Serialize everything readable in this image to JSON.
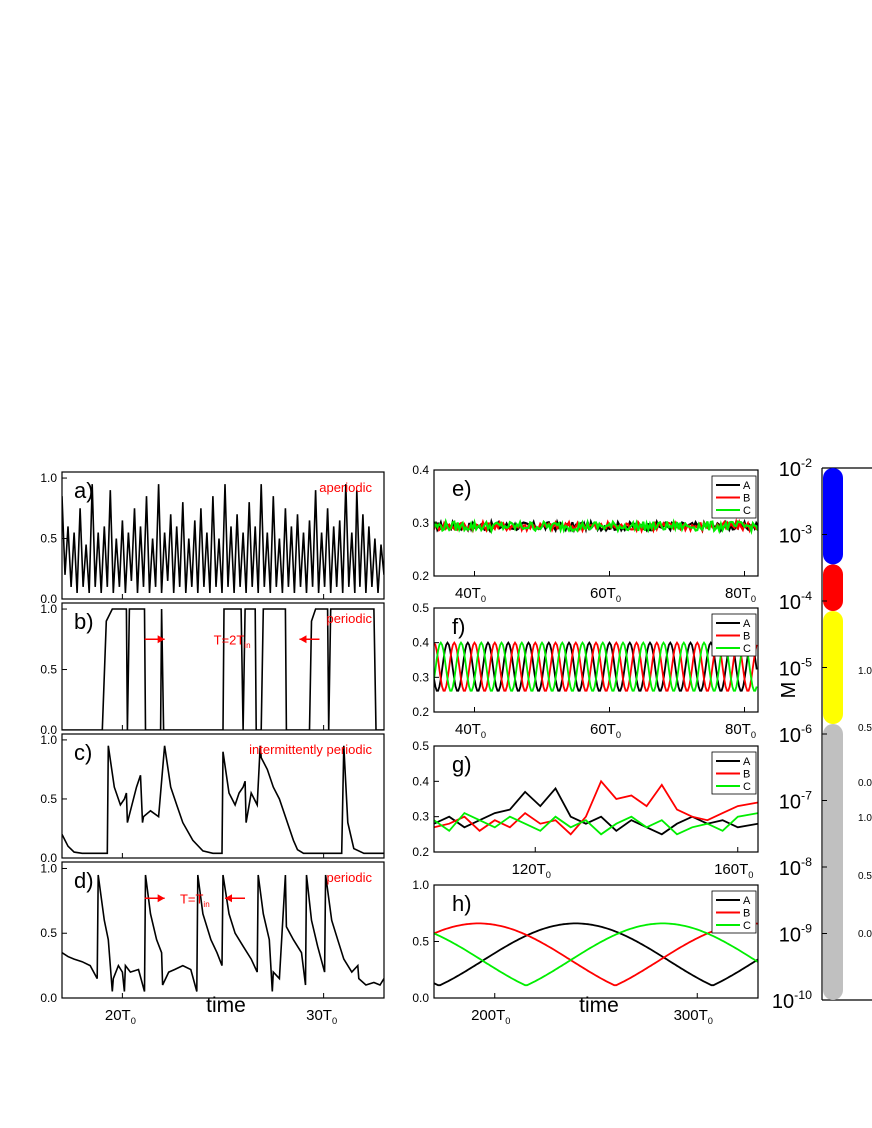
{
  "colors": {
    "black": "#000000",
    "red": "#ff0000",
    "green": "#00ee00",
    "blue": "#0000ff",
    "yellow": "#ffff00",
    "gray": "#c0c0c0"
  },
  "shared": {
    "left_xticks": [
      {
        "base": "20T",
        "sub": "0",
        "x": 20
      },
      {
        "base": "30T",
        "sub": "0",
        "x": 30
      }
    ],
    "left_xlabel": "time",
    "middle_xlabel": "time"
  },
  "chart_data": [
    {
      "id": "a",
      "type": "line",
      "label": "a)",
      "annotation": "aperiodic",
      "xlim": [
        17,
        33
      ],
      "ylim": [
        0,
        1.05
      ],
      "yticks": [
        "0.0",
        "0.5",
        "1.0"
      ],
      "series": [
        {
          "color": "black",
          "x": [
            17.0,
            17.15,
            17.3,
            17.45,
            17.6,
            17.75,
            17.9,
            18.05,
            18.2,
            18.35,
            18.5,
            18.65,
            18.8,
            18.95,
            19.1,
            19.25,
            19.4,
            19.55,
            19.7,
            19.85,
            20.0,
            20.15,
            20.3,
            20.45,
            20.6,
            20.75,
            20.9,
            21.05,
            21.2,
            21.35,
            21.5,
            21.65,
            21.8,
            21.95,
            22.1,
            22.25,
            22.4,
            22.55,
            22.7,
            22.85,
            23.0,
            23.15,
            23.3,
            23.45,
            23.6,
            23.75,
            23.9,
            24.05,
            24.2,
            24.35,
            24.5,
            24.65,
            24.8,
            24.95,
            25.1,
            25.25,
            25.4,
            25.55,
            25.7,
            25.85,
            26.0,
            26.15,
            26.3,
            26.45,
            26.6,
            26.75,
            26.9,
            27.05,
            27.2,
            27.35,
            27.5,
            27.65,
            27.8,
            27.95,
            28.1,
            28.25,
            28.4,
            28.55,
            28.7,
            28.85,
            29.0,
            29.15,
            29.3,
            29.45,
            29.6,
            29.75,
            29.9,
            30.05,
            30.2,
            30.35,
            30.5,
            30.65,
            30.8,
            30.95,
            31.1,
            31.25,
            31.4,
            31.55,
            31.65,
            31.8,
            31.95,
            32.1,
            32.25,
            32.4,
            32.55,
            32.7,
            32.85,
            33.0
          ],
          "y": [
            0.85,
            0.2,
            0.6,
            0.1,
            0.55,
            0.05,
            0.75,
            0.1,
            0.45,
            0.05,
            0.95,
            0.1,
            0.55,
            0.05,
            0.6,
            0.1,
            0.9,
            0.05,
            0.5,
            0.1,
            0.65,
            0.05,
            0.55,
            0.15,
            0.75,
            0.05,
            0.6,
            0.1,
            0.85,
            0.05,
            0.5,
            0.1,
            0.95,
            0.05,
            0.55,
            0.15,
            0.7,
            0.05,
            0.6,
            0.1,
            0.8,
            0.05,
            0.5,
            0.1,
            0.65,
            0.05,
            0.75,
            0.1,
            0.55,
            0.05,
            0.85,
            0.1,
            0.5,
            0.05,
            0.95,
            0.1,
            0.6,
            0.05,
            0.7,
            0.1,
            0.55,
            0.05,
            0.8,
            0.1,
            0.6,
            0.05,
            0.95,
            0.1,
            0.55,
            0.05,
            0.85,
            0.1,
            0.5,
            0.05,
            0.75,
            0.1,
            0.6,
            0.05,
            0.7,
            0.1,
            0.55,
            0.05,
            0.65,
            0.1,
            0.9,
            0.05,
            0.55,
            0.1,
            0.75,
            0.05,
            0.6,
            0.1,
            0.65,
            0.05,
            0.95,
            0.1,
            0.55,
            0.05,
            0.9,
            0.1,
            0.7,
            0.05,
            0.6,
            0.1,
            0.5,
            0.05,
            0.45,
            0.2
          ]
        }
      ]
    },
    {
      "id": "b",
      "type": "line",
      "label": "b)",
      "annotation": "periodic",
      "xlim": [
        17,
        33
      ],
      "ylim": [
        0,
        1.05
      ],
      "yticks": [
        "0.0",
        "0.5",
        "1.0"
      ],
      "period_marker": {
        "text": "T=2T",
        "sub": "in",
        "x1": 22.2,
        "x2": 28.7,
        "y": 0.75
      },
      "series": [
        {
          "color": "black",
          "x": [
            17.0,
            19.0,
            19.2,
            19.5,
            20.2,
            20.25,
            20.35,
            21.1,
            21.15,
            21.2,
            21.9,
            21.95,
            22.05,
            22.1,
            25.0,
            25.05,
            25.2,
            25.9,
            26.0,
            26.1,
            26.6,
            26.65,
            26.9,
            27.0,
            27.1,
            28.1,
            28.15,
            28.25,
            29.3,
            29.4,
            29.6,
            30.2,
            30.25,
            30.35,
            30.9,
            30.95,
            31.0,
            32.5,
            32.6,
            33.0
          ],
          "y": [
            0,
            0,
            0.9,
            1,
            1,
            0,
            1,
            1,
            0,
            0,
            0,
            1,
            0,
            0,
            0,
            1,
            1,
            1,
            0,
            1,
            1,
            0,
            0,
            1,
            1,
            1,
            0,
            0,
            0,
            0.9,
            1,
            1,
            0,
            1,
            1,
            1,
            1,
            1,
            0,
            0
          ]
        }
      ]
    },
    {
      "id": "c",
      "type": "line",
      "label": "c)",
      "annotation": "intermittently periodic",
      "xlim": [
        17,
        33
      ],
      "ylim": [
        0,
        1.05
      ],
      "yticks": [
        "0.0",
        "0.5",
        "1.0"
      ],
      "series": [
        {
          "color": "black",
          "x": [
            17.0,
            17.3,
            17.6,
            18.0,
            18.5,
            19.0,
            19.25,
            19.3,
            19.6,
            19.9,
            20.1,
            20.2,
            20.25,
            20.7,
            20.9,
            21.0,
            21.05,
            21.4,
            21.8,
            22.1,
            22.4,
            22.7,
            23.0,
            23.5,
            24.0,
            24.5,
            24.95,
            25.0,
            25.3,
            25.6,
            25.8,
            26.0,
            26.1,
            26.15,
            26.4,
            26.7,
            26.85,
            26.9,
            27.2,
            27.5,
            27.8,
            28.0,
            28.3,
            28.5,
            28.7,
            29.0,
            29.5,
            30.0,
            30.5,
            30.9,
            31.0,
            31.2,
            31.5,
            32.0,
            32.5,
            33.0
          ],
          "y": [
            0.2,
            0.1,
            0.05,
            0.04,
            0.04,
            0.04,
            0.04,
            0.95,
            0.6,
            0.45,
            0.5,
            0.55,
            0.3,
            0.6,
            0.7,
            0.3,
            0.35,
            0.4,
            0.35,
            0.95,
            0.6,
            0.45,
            0.3,
            0.15,
            0.06,
            0.04,
            0.04,
            0.9,
            0.55,
            0.45,
            0.55,
            0.6,
            0.65,
            0.3,
            0.55,
            0.45,
            0.95,
            0.85,
            0.75,
            0.6,
            0.5,
            0.4,
            0.25,
            0.15,
            0.07,
            0.04,
            0.04,
            0.04,
            0.04,
            0.04,
            0.95,
            0.3,
            0.08,
            0.04,
            0.04,
            0.04
          ]
        }
      ]
    },
    {
      "id": "d",
      "type": "line",
      "label": "d)",
      "annotation": "periodic",
      "xlim": [
        17,
        33
      ],
      "ylim": [
        0,
        1.05
      ],
      "yticks": [
        "0.0",
        "0.5",
        "1.0"
      ],
      "period_marker": {
        "text": "T=T",
        "sub": "in",
        "x1": 22.2,
        "x2": 25.0,
        "y": 0.77
      },
      "series": [
        {
          "color": "black",
          "x": [
            17.0,
            17.3,
            17.6,
            18.0,
            18.4,
            18.75,
            18.8,
            19.1,
            19.3,
            19.5,
            19.55,
            19.8,
            20.0,
            20.1,
            20.15,
            20.4,
            20.8,
            21.1,
            21.15,
            21.4,
            21.7,
            21.95,
            22.0,
            22.3,
            22.6,
            23.0,
            23.4,
            23.7,
            23.75,
            24.0,
            24.4,
            24.7,
            24.95,
            25.0,
            25.3,
            25.6,
            26.0,
            26.4,
            26.7,
            26.75,
            27.0,
            27.3,
            27.45,
            27.5,
            27.8,
            28.1,
            28.15,
            28.5,
            28.9,
            29.1,
            29.15,
            29.4,
            29.7,
            30.05,
            30.1,
            30.4,
            30.7,
            31.0,
            31.4,
            31.7,
            31.75,
            32.1,
            32.5,
            32.8,
            33.0
          ],
          "y": [
            0.35,
            0.32,
            0.3,
            0.28,
            0.25,
            0.15,
            0.95,
            0.6,
            0.45,
            0.05,
            0.15,
            0.25,
            0.2,
            0.05,
            0.25,
            0.2,
            0.22,
            0.05,
            0.95,
            0.65,
            0.45,
            0.35,
            0.1,
            0.2,
            0.22,
            0.25,
            0.22,
            0.05,
            0.95,
            0.65,
            0.45,
            0.35,
            0.25,
            0.95,
            0.65,
            0.5,
            0.4,
            0.3,
            0.2,
            0.95,
            0.65,
            0.45,
            0.05,
            0.2,
            0.15,
            0.95,
            0.55,
            0.45,
            0.35,
            0.1,
            0.95,
            0.6,
            0.4,
            0.2,
            0.95,
            0.6,
            0.45,
            0.3,
            0.2,
            0.25,
            0.15,
            0.1,
            0.12,
            0.1,
            0.15
          ]
        }
      ]
    },
    {
      "id": "e",
      "type": "line",
      "label": "e)",
      "xlim": [
        34,
        82
      ],
      "ylim": [
        0.2,
        0.4
      ],
      "yticks": [
        "0.2",
        "0.3",
        "0.4"
      ],
      "xticks": [
        {
          "base": "40T",
          "sub": "0",
          "x": 40
        },
        {
          "base": "60T",
          "sub": "0",
          "x": 60
        },
        {
          "base": "80T",
          "sub": "0",
          "x": 80
        }
      ],
      "legend": [
        "A",
        "B",
        "C"
      ],
      "noise": true,
      "series": [
        {
          "name": "A",
          "color": "black",
          "mean": 0.294,
          "amp": 0.008
        },
        {
          "name": "B",
          "color": "red",
          "mean": 0.294,
          "amp": 0.008
        },
        {
          "name": "C",
          "color": "green",
          "mean": 0.294,
          "amp": 0.009
        }
      ]
    },
    {
      "id": "f",
      "type": "line",
      "label": "f)",
      "xlim": [
        34,
        82
      ],
      "ylim": [
        0.2,
        0.5
      ],
      "yticks": [
        "0.2",
        "0.3",
        "0.4",
        "0.5"
      ],
      "xticks": [
        {
          "base": "40T",
          "sub": "0",
          "x": 40
        },
        {
          "base": "60T",
          "sub": "0",
          "x": 60
        },
        {
          "base": "80T",
          "sub": "0",
          "x": 80
        }
      ],
      "legend": [
        "A",
        "B",
        "C"
      ],
      "sine": {
        "period": 3.0,
        "mean": 0.33,
        "amp": 0.07
      },
      "series": [
        {
          "name": "A",
          "color": "black",
          "phase": 0.0
        },
        {
          "name": "B",
          "color": "red",
          "phase": 1.0
        },
        {
          "name": "C",
          "color": "green",
          "phase": 2.0
        }
      ]
    },
    {
      "id": "g",
      "type": "line",
      "label": "g)",
      "xlim": [
        100,
        164
      ],
      "ylim": [
        0.2,
        0.5
      ],
      "yticks": [
        "0.2",
        "0.3",
        "0.4",
        "0.5"
      ],
      "xticks": [
        {
          "base": "120T",
          "sub": "0",
          "x": 120
        },
        {
          "base": "160T",
          "sub": "0",
          "x": 160
        }
      ],
      "legend": [
        "A",
        "B",
        "C"
      ],
      "series": [
        {
          "name": "A",
          "color": "black",
          "x": [
            100,
            103,
            106,
            109,
            112,
            115,
            118,
            121,
            124,
            127,
            130,
            133,
            136,
            139,
            142,
            145,
            148,
            151,
            154,
            157,
            160,
            164
          ],
          "y": [
            0.28,
            0.3,
            0.27,
            0.29,
            0.31,
            0.32,
            0.37,
            0.33,
            0.38,
            0.3,
            0.28,
            0.3,
            0.26,
            0.29,
            0.27,
            0.25,
            0.28,
            0.3,
            0.28,
            0.29,
            0.27,
            0.28
          ]
        },
        {
          "name": "B",
          "color": "red",
          "x": [
            100,
            103,
            106,
            109,
            112,
            115,
            118,
            121,
            124,
            127,
            130,
            133,
            136,
            139,
            142,
            145,
            148,
            151,
            154,
            157,
            160,
            164
          ],
          "y": [
            0.27,
            0.28,
            0.3,
            0.26,
            0.29,
            0.27,
            0.31,
            0.28,
            0.29,
            0.25,
            0.3,
            0.4,
            0.35,
            0.36,
            0.33,
            0.39,
            0.32,
            0.3,
            0.29,
            0.31,
            0.33,
            0.34
          ]
        },
        {
          "name": "C",
          "color": "green",
          "x": [
            100,
            103,
            106,
            109,
            112,
            115,
            118,
            121,
            124,
            127,
            130,
            133,
            136,
            139,
            142,
            145,
            148,
            151,
            154,
            157,
            160,
            164
          ],
          "y": [
            0.29,
            0.26,
            0.31,
            0.29,
            0.27,
            0.3,
            0.28,
            0.26,
            0.3,
            0.27,
            0.29,
            0.25,
            0.28,
            0.3,
            0.27,
            0.29,
            0.25,
            0.27,
            0.28,
            0.26,
            0.3,
            0.31
          ]
        }
      ]
    },
    {
      "id": "h",
      "type": "line",
      "label": "h)",
      "xlim": [
        170,
        330
      ],
      "ylim": [
        0,
        1.0
      ],
      "yticks": [
        "0.0",
        "0.5",
        "1.0"
      ],
      "xticks": [
        {
          "base": "200T",
          "sub": "0",
          "x": 200
        },
        {
          "base": "300T",
          "sub": "0",
          "x": 300
        }
      ],
      "legend": [
        "A",
        "B",
        "C"
      ],
      "bumps": {
        "period": 135,
        "height": 0.66,
        "width": 92
      },
      "series": [
        {
          "name": "A",
          "color": "black",
          "center": 240
        },
        {
          "name": "B",
          "color": "red",
          "center": 192
        },
        {
          "name": "C",
          "color": "green",
          "center": 283
        }
      ]
    },
    {
      "id": "colorbar",
      "type": "bar",
      "ylabel": "M",
      "scale": "log",
      "yticks": [
        {
          "base": "10",
          "exp": "-2"
        },
        {
          "base": "10",
          "exp": "-3"
        },
        {
          "base": "10",
          "exp": "-4"
        },
        {
          "base": "10",
          "exp": "-5"
        },
        {
          "base": "10",
          "exp": "-6"
        },
        {
          "base": "10",
          "exp": "-7"
        },
        {
          "base": "10",
          "exp": "-8"
        },
        {
          "base": "10",
          "exp": "-9"
        },
        {
          "base": "10",
          "exp": "-10"
        }
      ],
      "segments": [
        {
          "color": "gray",
          "from_exp": -10,
          "to_exp": -5.85
        },
        {
          "color": "yellow",
          "from_exp": -5.85,
          "to_exp": -4.15
        },
        {
          "color": "red",
          "from_exp": -4.15,
          "to_exp": -3.45
        },
        {
          "color": "blue",
          "from_exp": -3.45,
          "to_exp": -2
        }
      ],
      "cut_off_labels": [
        "1.0",
        "0.5",
        "0.0",
        "1.0",
        "0.5",
        "0.0"
      ]
    }
  ]
}
